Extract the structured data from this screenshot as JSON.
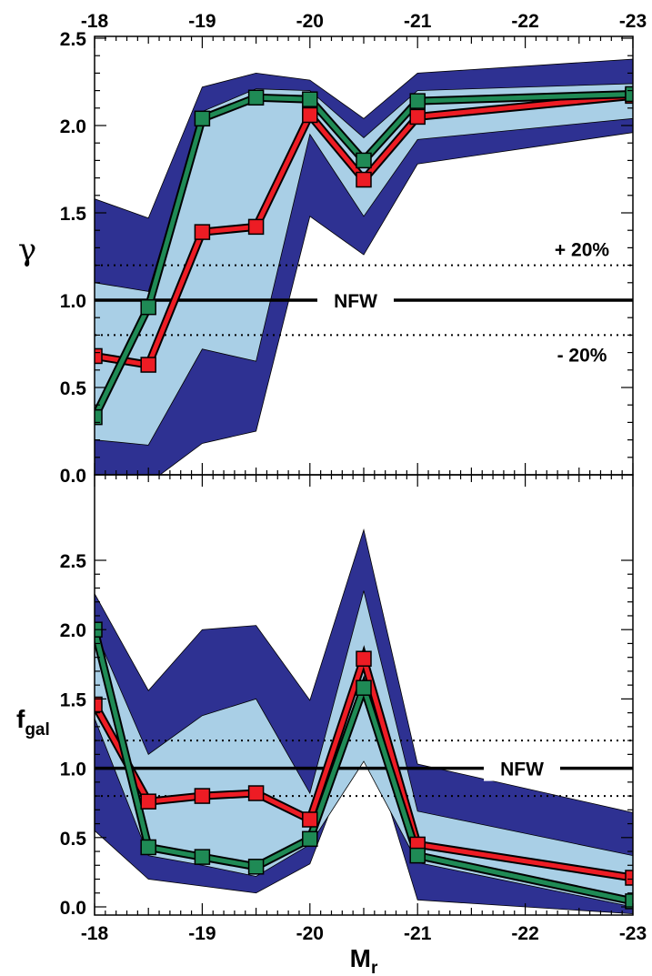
{
  "colors": {
    "outer_band": "#2e3192",
    "inner_band": "#a9cfe6",
    "red_series": "#ed1c24",
    "green_series": "#1f8a55",
    "axis": "#000000"
  },
  "chart_data": [
    {
      "type": "line",
      "panel": "top",
      "title": "",
      "ylabel": "γ",
      "xlabel": "",
      "xlim": [
        -18,
        -23
      ],
      "ylim": [
        0.0,
        2.5
      ],
      "x_ticks": [
        -18,
        -19,
        -20,
        -21,
        -22,
        -23
      ],
      "x_tick_labels": [
        "-18",
        "-19",
        "-20",
        "-21",
        "-22",
        "-23"
      ],
      "x_tick_labels_position": "top",
      "y_ticks": [
        0.0,
        0.5,
        1.0,
        1.5,
        2.0,
        2.5
      ],
      "y_tick_labels": [
        "0.0",
        "0.5",
        "1.0",
        "1.5",
        "2.0",
        "2.5"
      ],
      "x": [
        -18,
        -18.5,
        -19,
        -19.5,
        -20,
        -20.5,
        -21,
        -23
      ],
      "bands": [
        {
          "kind": "outer",
          "upper": [
            1.58,
            1.47,
            2.22,
            2.3,
            2.26,
            2.04,
            2.3,
            2.38
          ],
          "lower": [
            0.0,
            -0.05,
            0.18,
            0.25,
            1.48,
            1.26,
            1.78,
            1.96
          ]
        },
        {
          "kind": "inner",
          "upper": [
            1.1,
            1.05,
            2.08,
            2.21,
            2.2,
            1.93,
            2.2,
            2.24
          ],
          "lower": [
            0.2,
            0.17,
            0.72,
            0.65,
            1.95,
            1.48,
            1.92,
            2.04
          ]
        }
      ],
      "series": [
        {
          "color": "red",
          "values": [
            0.68,
            0.63,
            1.39,
            1.42,
            2.06,
            1.69,
            2.05,
            2.17
          ]
        },
        {
          "color": "green",
          "values": [
            0.33,
            0.96,
            2.04,
            2.16,
            2.15,
            1.8,
            2.14,
            2.18
          ]
        }
      ],
      "reference_lines": [
        {
          "y": 1.0,
          "style": "solid",
          "label": "NFW"
        },
        {
          "y": 1.2,
          "style": "dotted",
          "label": "+ 20%"
        },
        {
          "y": 0.8,
          "style": "dotted",
          "label": "- 20%"
        }
      ]
    },
    {
      "type": "line",
      "panel": "bottom",
      "title": "",
      "ylabel": "f",
      "ylabel_sub": "gal",
      "xlabel": "M",
      "xlabel_sub": "r",
      "xlim": [
        -18,
        -23
      ],
      "ylim": [
        -0.05,
        3.0
      ],
      "x_ticks": [
        -18,
        -19,
        -20,
        -21,
        -22,
        -23
      ],
      "x_tick_labels": [
        "-18",
        "-19",
        "-20",
        "-21",
        "-22",
        "-23"
      ],
      "x_tick_labels_position": "bottom",
      "y_ticks": [
        0.0,
        0.5,
        1.0,
        1.5,
        2.0,
        2.5
      ],
      "y_tick_labels": [
        "0.0",
        "0.5",
        "1.0",
        "1.5",
        "2.0",
        "2.5"
      ],
      "x": [
        -18,
        -18.5,
        -19,
        -19.5,
        -20,
        -20.5,
        -21,
        -23
      ],
      "bands": [
        {
          "kind": "outer",
          "upper": [
            2.26,
            1.56,
            2.0,
            2.03,
            1.49,
            2.72,
            1.03,
            0.68
          ],
          "lower": [
            0.55,
            0.2,
            0.15,
            0.1,
            0.31,
            1.32,
            0.05,
            -0.05
          ]
        },
        {
          "kind": "inner",
          "upper": [
            2.0,
            1.1,
            1.38,
            1.5,
            0.82,
            2.28,
            0.69,
            0.37
          ],
          "lower": [
            1.36,
            0.37,
            0.3,
            0.22,
            0.45,
            1.05,
            0.32,
            0.0
          ]
        }
      ],
      "series": [
        {
          "color": "red",
          "values": [
            1.46,
            0.76,
            0.8,
            0.82,
            0.63,
            1.79,
            0.45,
            0.21
          ]
        },
        {
          "color": "green",
          "values": [
            2.0,
            0.43,
            0.36,
            0.29,
            0.49,
            1.58,
            0.37,
            0.04
          ]
        }
      ],
      "reference_lines": [
        {
          "y": 1.0,
          "style": "solid",
          "label": "NFW"
        },
        {
          "y": 1.2,
          "style": "dotted",
          "label": ""
        },
        {
          "y": 0.8,
          "style": "dotted",
          "label": ""
        }
      ]
    }
  ]
}
